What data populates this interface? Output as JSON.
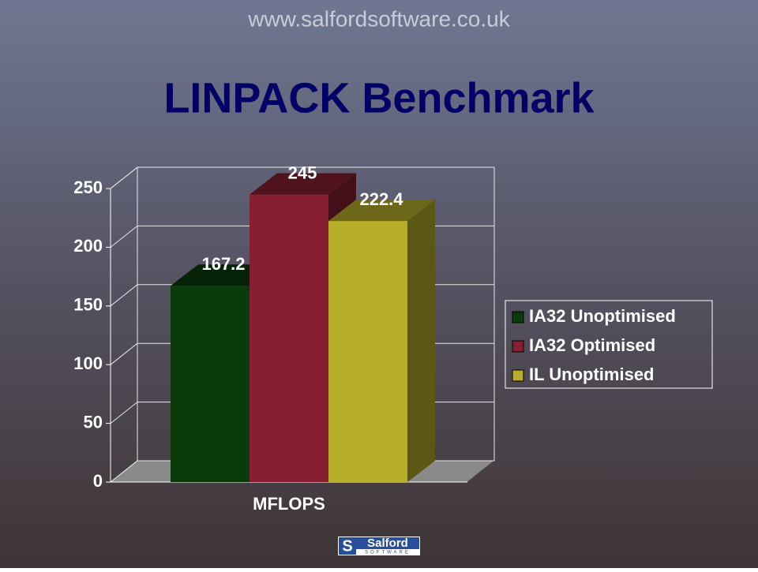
{
  "header": {
    "url": "www.salfordsoftware.co.uk"
  },
  "chart_data": {
    "type": "bar3d",
    "title": "LINPACK Benchmark",
    "categories": [
      "MFLOPS"
    ],
    "series": [
      {
        "name": "IA32 Unoptimised",
        "color": "#0b3a0b",
        "values": [
          167.2
        ]
      },
      {
        "name": "IA32 Optimised",
        "color": "#861f32",
        "values": [
          245
        ]
      },
      {
        "name": "IL Unoptimised",
        "color": "#b6ae2a",
        "values": [
          222.4
        ]
      }
    ],
    "ylim": [
      0,
      250
    ],
    "yticks": [
      0,
      50,
      100,
      150,
      200,
      250
    ],
    "grid": true,
    "legend": "right"
  },
  "footer": {
    "logo": "Salford",
    "tagline": "SOFTWARE"
  }
}
